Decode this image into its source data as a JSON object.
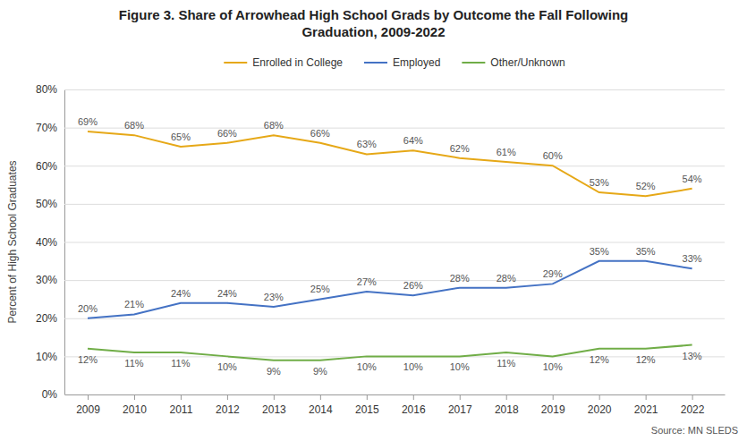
{
  "chart_data": {
    "type": "line",
    "title": "Figure 3. Share of Arrowhead High School Grads by Outcome the Fall Following\nGraduation, 2009-2022",
    "y_label": "Percent of High School Graduates",
    "annotations": [
      "Source: MN SLEDS"
    ],
    "x": [
      2009,
      2010,
      2011,
      2012,
      2013,
      2014,
      2015,
      2016,
      2017,
      2018,
      2019,
      2020,
      2021,
      2022
    ],
    "series": [
      {
        "name": "Enrolled in College",
        "color": "#E6A817",
        "values": [
          69,
          68,
          65,
          66,
          68,
          66,
          63,
          64,
          62,
          61,
          60,
          53,
          52,
          54
        ],
        "value_labels": [
          "69%",
          "68%",
          "65%",
          "66%",
          "68%",
          "66%",
          "63%",
          "64%",
          "62%",
          "61%",
          "60%",
          "53%",
          "52%",
          "54%"
        ]
      },
      {
        "name": "Employed",
        "color": "#4472C4",
        "values": [
          20,
          21,
          24,
          24,
          23,
          25,
          27,
          26,
          28,
          28,
          29,
          35,
          35,
          33
        ],
        "value_labels": [
          "20%",
          "21%",
          "24%",
          "24%",
          "23%",
          "25%",
          "27%",
          "26%",
          "28%",
          "28%",
          "29%",
          "35%",
          "35%",
          "33%"
        ]
      },
      {
        "name": "Other/Unknown",
        "color": "#70AD47",
        "values": [
          12,
          11,
          11,
          10,
          9,
          9,
          10,
          10,
          10,
          11,
          10,
          12,
          12,
          13
        ],
        "value_labels": [
          "12%",
          "11%",
          "11%",
          "10%",
          "9%",
          "9%",
          "10%",
          "10%",
          "10%",
          "11%",
          "10%",
          "12%",
          "12%",
          "13%"
        ]
      }
    ],
    "xlim": [
      2008.5,
      2022.7
    ],
    "xticks": [
      2009,
      2010,
      2011,
      2012,
      2013,
      2014,
      2015,
      2016,
      2017,
      2018,
      2019,
      2020,
      2021,
      2022
    ],
    "ylim": [
      0,
      80
    ],
    "yticks": [
      {
        "value": 0,
        "label": "0%"
      },
      {
        "value": 10,
        "label": "10%"
      },
      {
        "value": 20,
        "label": "20%"
      },
      {
        "value": 30,
        "label": "30%"
      },
      {
        "value": 40,
        "label": "40%"
      },
      {
        "value": 50,
        "label": "50%"
      },
      {
        "value": 60,
        "label": "60%"
      },
      {
        "value": 70,
        "label": "70%"
      },
      {
        "value": 80,
        "label": "80%"
      }
    ],
    "grid": true,
    "legend": "top",
    "data_labels": true
  }
}
